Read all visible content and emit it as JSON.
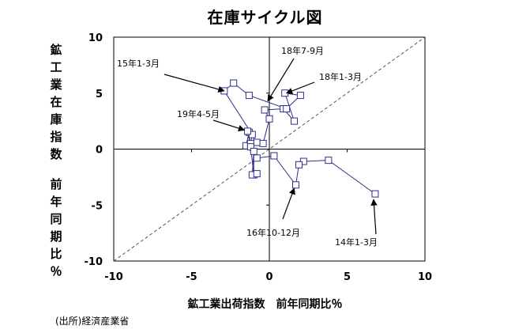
{
  "chart_data": {
    "type": "scatter",
    "title": "在庫サイクル図",
    "xlabel": "鉱工業出荷指数　前年同期比％",
    "ylabel_line1": "鉱工業在庫指数",
    "ylabel_line2": "前年同期比％",
    "xlim": [
      -10,
      10
    ],
    "ylim": [
      -10,
      10
    ],
    "x_ticks": [
      "-10",
      "-5",
      "0",
      "5",
      "10"
    ],
    "y_ticks": [
      "10",
      "5",
      "0",
      "-5",
      "-10"
    ],
    "reference_line": "45-degree dashed diagonal",
    "grid": false,
    "series": [
      {
        "points": [
          [
            6.8,
            -4.0
          ],
          [
            3.8,
            -1.0
          ],
          [
            2.2,
            -1.1
          ],
          [
            1.9,
            -1.4
          ],
          [
            1.7,
            -3.2
          ],
          [
            0.3,
            -0.6
          ],
          [
            -0.8,
            -0.8
          ],
          [
            -1.5,
            0.3
          ],
          [
            -1.3,
            1.5
          ],
          [
            -0.8,
            0.6
          ],
          [
            -0.4,
            0.5
          ],
          [
            0.0,
            2.7
          ],
          [
            -0.3,
            3.5
          ],
          [
            0.9,
            3.6
          ],
          [
            1.6,
            2.5
          ],
          [
            1.0,
            5.0
          ],
          [
            2.0,
            4.8
          ],
          [
            1.1,
            3.6
          ],
          [
            -1.3,
            4.8
          ],
          [
            -2.3,
            5.9
          ],
          [
            -2.9,
            5.2
          ],
          [
            -1.1,
            1.3
          ],
          [
            -1.2,
            0.5
          ],
          [
            -1.4,
            1.6
          ],
          [
            -1.2,
            0.2
          ],
          [
            -1.0,
            -2.3
          ],
          [
            -1.0,
            -0.2
          ],
          [
            -1.1,
            -2.3
          ],
          [
            -0.8,
            -2.2
          ]
        ]
      }
    ],
    "annotations": [
      {
        "text": "15年1-3月"
      },
      {
        "text": "18年7-9月"
      },
      {
        "text": "18年1-3月"
      },
      {
        "text": "19年4-5月"
      },
      {
        "text": "16年10-12月"
      },
      {
        "text": "14年1-3月"
      }
    ],
    "colors": {
      "series": "#2e2e8c",
      "marker_face": "#ffffff",
      "axis": "#000000",
      "diagonal": "#555555"
    }
  },
  "source": "(出所)経済産業省"
}
